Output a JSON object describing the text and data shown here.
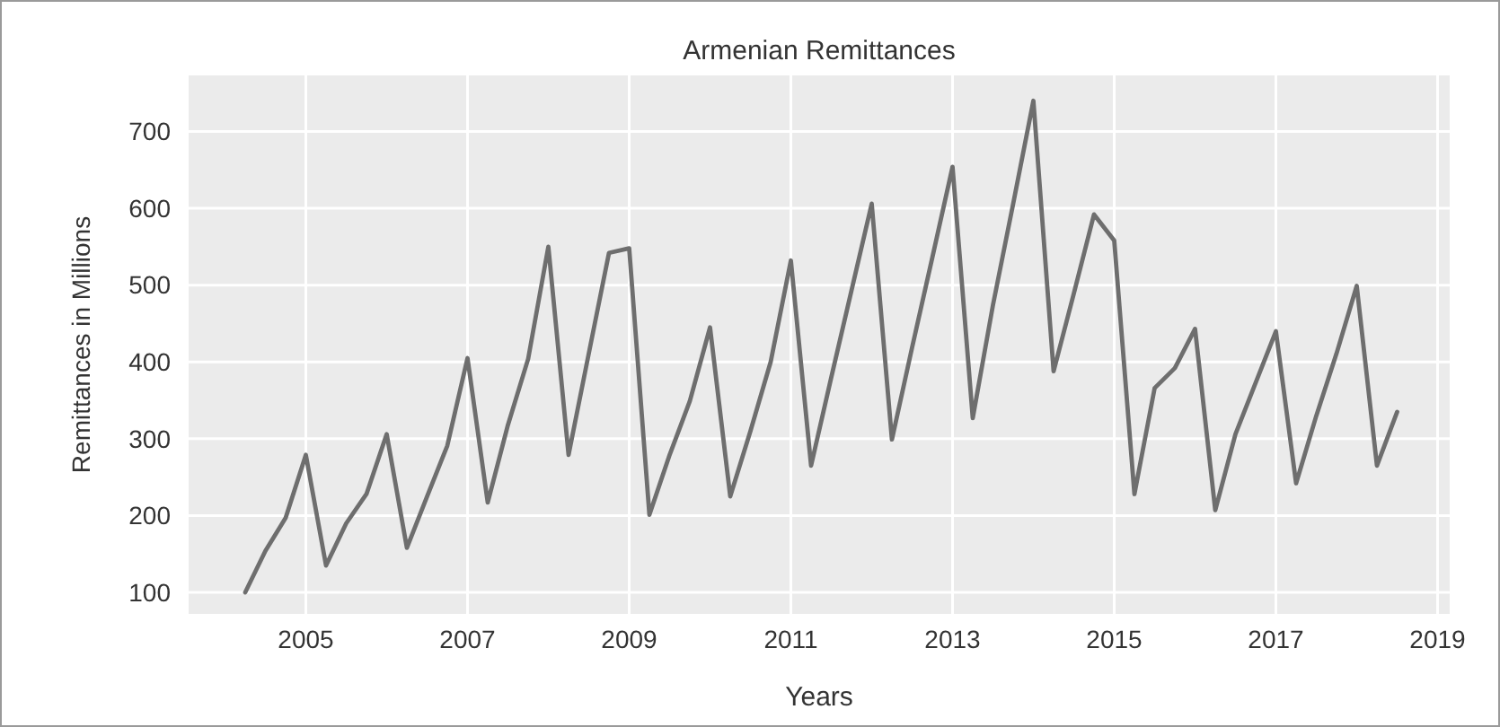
{
  "chart_data": {
    "type": "line",
    "title": "Armenian Remittances",
    "xlabel": "Years",
    "ylabel": "Remittances in Millions",
    "x": [
      2004.25,
      2004.5,
      2004.75,
      2005,
      2005.25,
      2005.5,
      2005.75,
      2006,
      2006.25,
      2006.5,
      2006.75,
      2007,
      2007.25,
      2007.5,
      2007.75,
      2008,
      2008.25,
      2008.5,
      2008.75,
      2009,
      2009.25,
      2009.5,
      2009.75,
      2010,
      2010.25,
      2010.5,
      2010.75,
      2011,
      2011.25,
      2011.5,
      2011.75,
      2012,
      2012.25,
      2012.5,
      2012.75,
      2013,
      2013.25,
      2013.5,
      2013.75,
      2014,
      2014.25,
      2014.5,
      2014.75,
      2015,
      2015.25,
      2015.5,
      2015.75,
      2016,
      2016.25,
      2016.5,
      2016.75,
      2017,
      2017.25,
      2017.5,
      2017.75,
      2018,
      2018.25,
      2018.5
    ],
    "series": [
      {
        "color": "#6e6e6e",
        "values": [
          100,
          154,
          197,
          279,
          135,
          190,
          228,
          306,
          158,
          225,
          291,
          405,
          217,
          318,
          404,
          550,
          279,
          411,
          542,
          548,
          201,
          279,
          349,
          445,
          225,
          310,
          400,
          532,
          265,
          380,
          493,
          606,
          299,
          419,
          536,
          654,
          327,
          474,
          606,
          740,
          388,
          489,
          592,
          558,
          228,
          366,
          392,
          443,
          207,
          306,
          373,
          440,
          242,
          330,
          411,
          499,
          265,
          335
        ]
      }
    ],
    "xlim": [
      2003.55,
      2019.15
    ],
    "xticks": [
      2005,
      2007,
      2009,
      2011,
      2013,
      2015,
      2017,
      2019
    ],
    "ylim": [
      72,
      773
    ],
    "yticks": [
      100,
      200,
      300,
      400,
      500,
      600,
      700
    ],
    "grid": true,
    "marker": "none",
    "line_style": "solid"
  }
}
